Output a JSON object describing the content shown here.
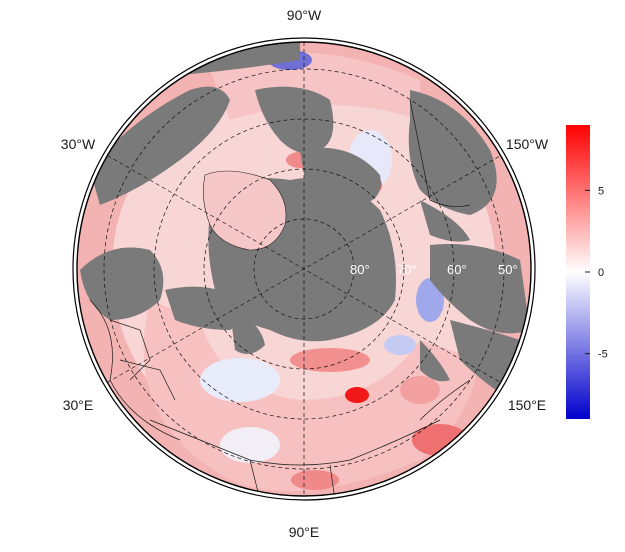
{
  "map": {
    "projection": "north-polar-stereographic",
    "colors": {
      "land": "#7a7a7a",
      "ocean": "#ffffff",
      "frame": "#000000",
      "graticule": "#111111"
    },
    "longitude_labels": {
      "top": "90°W",
      "upper_left": "30°W",
      "upper_right": "150°W",
      "lower_left": "30°E",
      "lower_right": "150°E",
      "bottom": "90°E"
    },
    "latitude_labels": [
      "80°",
      "70°",
      "60°",
      "50°"
    ]
  },
  "colorbar": {
    "colors": {
      "min": "#0000cc",
      "mid": "#ffffff",
      "max": "#ff0000"
    },
    "range": [
      -9,
      9
    ],
    "ticks": [
      {
        "value": 5,
        "label": "5"
      },
      {
        "value": 0,
        "label": "0"
      },
      {
        "value": -5,
        "label": "-5"
      }
    ]
  }
}
